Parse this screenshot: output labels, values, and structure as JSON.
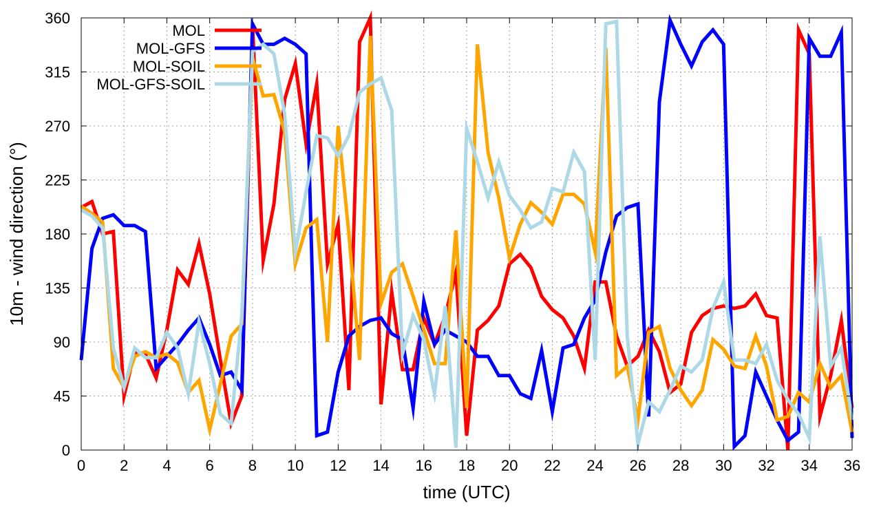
{
  "chart_data": {
    "type": "line",
    "title": "",
    "xlabel": "time (UTC)",
    "ylabel": "10m - wind direction (°)",
    "xlim": [
      0,
      36
    ],
    "ylim": [
      0,
      360
    ],
    "xticks": [
      0,
      2,
      4,
      6,
      8,
      10,
      12,
      14,
      16,
      18,
      20,
      22,
      24,
      26,
      28,
      30,
      32,
      34,
      36
    ],
    "yticks": [
      0,
      45,
      90,
      135,
      180,
      225,
      270,
      315,
      360
    ],
    "grid": true,
    "legend_position": "top-left",
    "x": [
      0,
      0.5,
      1,
      1.5,
      2,
      2.5,
      3,
      3.5,
      4,
      4.5,
      5,
      5.5,
      6,
      6.5,
      7,
      7.5,
      8,
      8.5,
      9,
      9.5,
      10,
      10.5,
      11,
      11.5,
      12,
      12.5,
      13,
      13.5,
      14,
      14.5,
      15,
      15.5,
      16,
      16.5,
      17,
      17.5,
      18,
      18.5,
      19,
      19.5,
      20,
      20.5,
      21,
      21.5,
      22,
      22.5,
      23,
      23.5,
      24,
      24.5,
      25,
      25.5,
      26,
      26.5,
      27,
      27.5,
      28,
      28.5,
      29,
      29.5,
      30,
      30.5,
      31,
      31.5,
      32,
      32.5,
      33,
      33.5,
      34,
      34.5,
      35,
      35.5,
      36
    ],
    "series": [
      {
        "name": "MOL",
        "color": "#ff0000",
        "values": [
          202,
          207,
          180,
          182,
          45,
          82,
          80,
          60,
          100,
          150,
          138,
          172,
          130,
          75,
          22,
          45,
          355,
          158,
          205,
          292,
          322,
          255,
          305,
          155,
          188,
          50,
          340,
          360,
          38,
          132,
          67,
          67,
          110,
          88,
          112,
          148,
          12,
          100,
          108,
          120,
          155,
          163,
          152,
          128,
          117,
          110,
          95,
          68,
          140,
          140,
          95,
          70,
          78,
          100,
          82,
          48,
          55,
          98,
          112,
          118,
          120,
          118,
          120,
          130,
          112,
          110,
          0,
          350,
          330,
          28,
          62,
          108,
          35
        ]
      },
      {
        "name": "MOL-GFS",
        "color": "#0000ff",
        "values": [
          75,
          168,
          193,
          196,
          187,
          187,
          182,
          68,
          78,
          88,
          100,
          110,
          88,
          62,
          65,
          50,
          355,
          338,
          338,
          343,
          338,
          330,
          12,
          15,
          65,
          95,
          103,
          108,
          110,
          97,
          92,
          35,
          124,
          88,
          100,
          95,
          90,
          78,
          78,
          62,
          62,
          47,
          43,
          83,
          32,
          85,
          88,
          110,
          125,
          165,
          195,
          202,
          205,
          28,
          290,
          358,
          338,
          320,
          340,
          350,
          338,
          3,
          12,
          65,
          45,
          25,
          8,
          15,
          343,
          328,
          328,
          348,
          10
        ]
      },
      {
        "name": "MOL-SOIL",
        "color": "#ffa500",
        "values": [
          203,
          197,
          190,
          68,
          52,
          78,
          82,
          77,
          80,
          73,
          48,
          58,
          17,
          55,
          95,
          105,
          327,
          295,
          296,
          265,
          155,
          185,
          192,
          90,
          270,
          180,
          75,
          345,
          122,
          148,
          155,
          128,
          100,
          72,
          72,
          183,
          35,
          338,
          248,
          210,
          160,
          188,
          206,
          198,
          188,
          213,
          213,
          205,
          165,
          335,
          62,
          70,
          25,
          98,
          103,
          68,
          50,
          37,
          50,
          92,
          84,
          70,
          68,
          95,
          70,
          25,
          28,
          48,
          40,
          72,
          52,
          62,
          15
        ]
      },
      {
        "name": "MOL-GFS-SOIL",
        "color": "#add8e6",
        "values": [
          200,
          195,
          185,
          85,
          52,
          85,
          77,
          77,
          98,
          85,
          47,
          107,
          72,
          30,
          22,
          112,
          332,
          338,
          330,
          280,
          165,
          215,
          262,
          260,
          245,
          262,
          298,
          305,
          310,
          283,
          80,
          112,
          92,
          47,
          120,
          2,
          268,
          240,
          210,
          240,
          212,
          200,
          185,
          190,
          218,
          215,
          248,
          232,
          75,
          355,
          357,
          95,
          5,
          40,
          32,
          50,
          70,
          65,
          75,
          118,
          140,
          75,
          75,
          72,
          88,
          58,
          42,
          30,
          10,
          178,
          70,
          85,
          25
        ]
      }
    ]
  }
}
